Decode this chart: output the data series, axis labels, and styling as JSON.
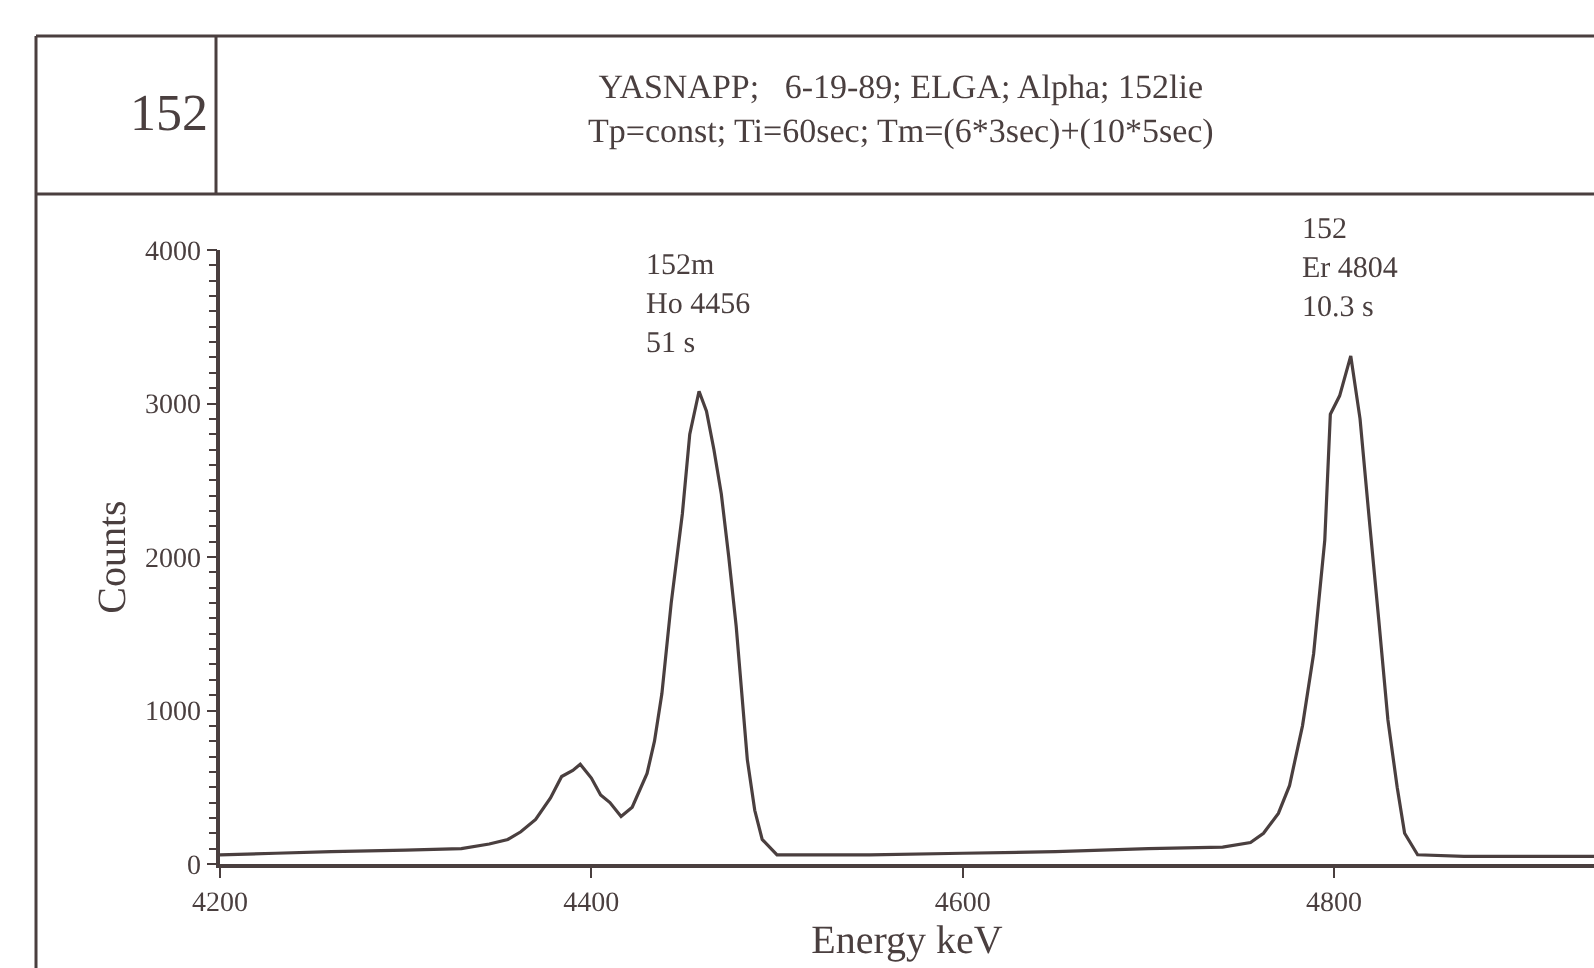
{
  "chart_data": {
    "type": "line",
    "title": "YASNAPP;   6-19-89; ELGA; Alpha; 152lie\nTp=const; Ti=60sec; Tm=(6*3sec)+(10*5sec)",
    "xlabel": "Energy keV",
    "ylabel": "Counts",
    "xlim": [
      4200,
      4940
    ],
    "xticks": [
      4200,
      4400,
      4600,
      4800
    ],
    "ylim": [
      0,
      4000
    ],
    "yticks": [
      0,
      1000,
      2000,
      3000,
      4000
    ],
    "marker": "none",
    "line_style": "solid",
    "annotations": [
      "152",
      {
        "text": "152m\nHo 4456\n51 s",
        "x": 4458,
        "y": 3080
      },
      {
        "text": "152\nEr 4804\n10.3 s",
        "x": 4809,
        "y": 3310
      }
    ],
    "series": [
      {
        "color": "#4a3f3f",
        "x": [
          4200,
          4230,
          4260,
          4300,
          4330,
          4345,
          4355,
          4362,
          4370,
          4378,
          4384,
          4390,
          4394,
          4400,
          4405,
          4410,
          4416,
          4422,
          4430,
          4434,
          4438,
          4443,
          4449,
          4453,
          4458,
          4462,
          4466,
          4470,
          4474,
          4478,
          4484,
          4488,
          4492,
          4500,
          4550,
          4600,
          4650,
          4700,
          4740,
          4755,
          4762,
          4770,
          4776,
          4783,
          4789,
          4795,
          4798,
          4803,
          4809,
          4814,
          4819,
          4824,
          4829,
          4834,
          4838,
          4845,
          4870,
          4900,
          4940
        ],
        "values": [
          60,
          70,
          80,
          90,
          100,
          130,
          160,
          210,
          290,
          430,
          570,
          610,
          650,
          560,
          450,
          400,
          310,
          370,
          590,
          800,
          1110,
          1700,
          2280,
          2800,
          3080,
          2950,
          2700,
          2410,
          2000,
          1550,
          680,
          350,
          160,
          60,
          60,
          70,
          80,
          100,
          110,
          140,
          200,
          330,
          510,
          900,
          1370,
          2110,
          2930,
          3050,
          3310,
          2900,
          2240,
          1600,
          940,
          500,
          200,
          60,
          50,
          50,
          50
        ]
      }
    ]
  }
}
